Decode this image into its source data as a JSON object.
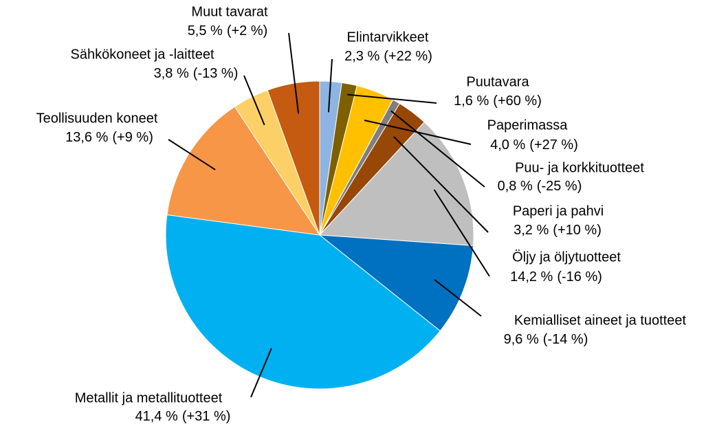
{
  "chart_data": {
    "type": "pie",
    "categories": [
      "Elintarvikkeet",
      "Puutavara",
      "Paperimassa",
      "Puu- ja korkkituotteet",
      "Paperi ja pahvi",
      "Öljy ja öljytuotteet",
      "Kemialliset aineet ja tuotteet",
      "Metallit ja metallituotteet",
      "Teollisuuden koneet",
      "Sähkökoneet ja -laitteet",
      "Muut tavarat"
    ],
    "values": [
      2.3,
      1.6,
      4.0,
      0.8,
      3.2,
      14.2,
      9.6,
      41.4,
      13.6,
      3.8,
      5.5
    ],
    "value_labels": [
      "2,3 %",
      "1,6 %",
      "4,0 %",
      "0,8 %",
      "3,2 %",
      "14,2 %",
      "9,6 %",
      "41,4 %",
      "13,6 %",
      "3,8 %",
      "5,5 %"
    ],
    "changes": [
      22,
      60,
      27,
      -25,
      10,
      -16,
      -14,
      31,
      9,
      -13,
      2
    ],
    "change_labels": [
      "(+22 %)",
      "(+60 %)",
      "(+27 %)",
      "(-25 %)",
      "(+10 %)",
      "(-16 %)",
      "(-14 %)",
      "(+31 %)",
      "(+9 %)",
      "(-13 %)",
      "(+2 %)"
    ],
    "colors": [
      "#8db4e2",
      "#7f6000",
      "#ffc000",
      "#7f7f7f",
      "#974706",
      "#bfbfbf",
      "#0070c0",
      "#00b0f0",
      "#f79646",
      "#fcd066",
      "#c55a11"
    ]
  }
}
